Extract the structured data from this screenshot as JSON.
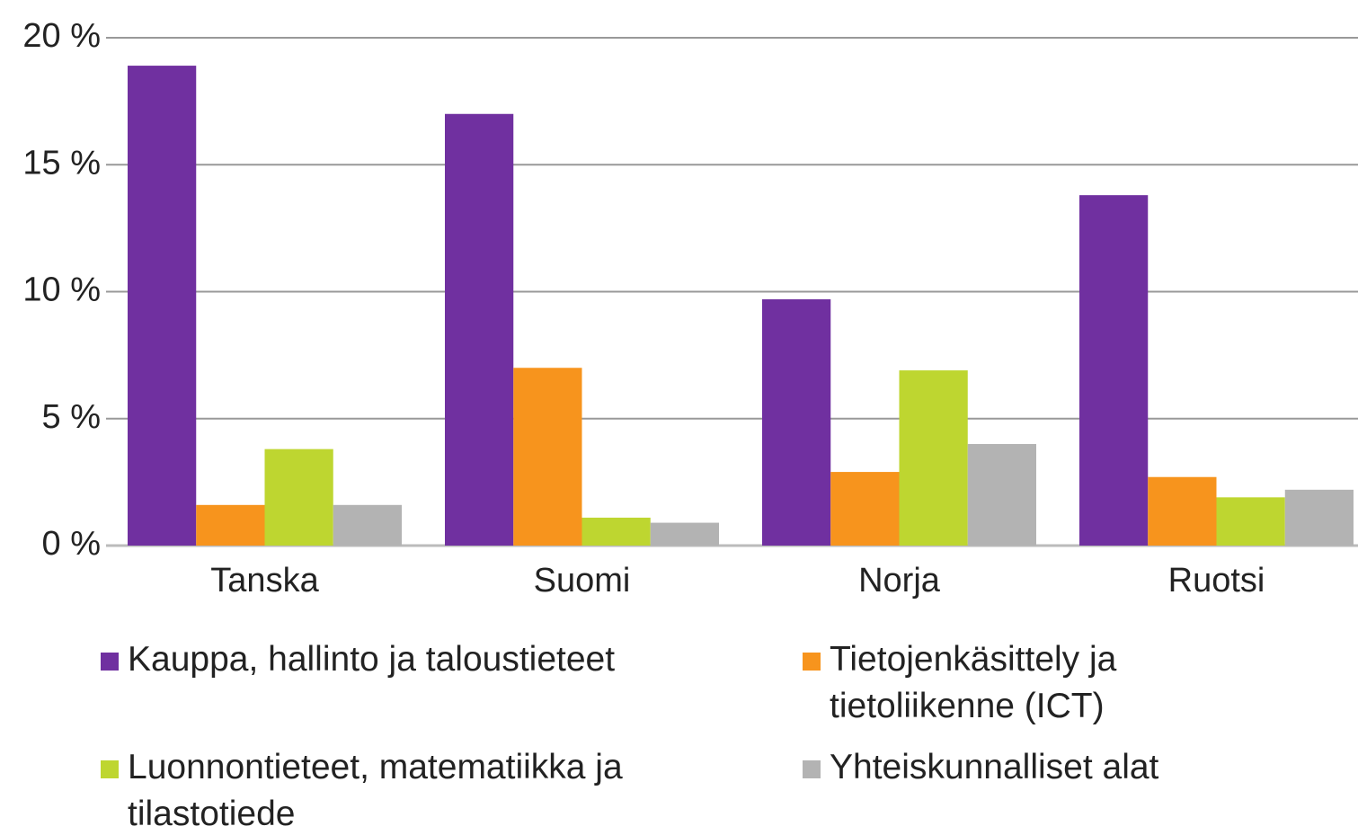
{
  "chart_data": {
    "type": "bar",
    "categories": [
      "Tanska",
      "Suomi",
      "Norja",
      "Ruotsi"
    ],
    "series": [
      {
        "name": "Kauppa, hallinto ja taloustieteet",
        "color": "#7030a0",
        "values": [
          18.9,
          17.0,
          9.7,
          13.8
        ]
      },
      {
        "name": "Tietojenkäsittely ja tietoliikenne (ICT)",
        "color": "#f7941d",
        "values": [
          1.6,
          7.0,
          2.9,
          2.7
        ]
      },
      {
        "name": "Luonnontieteet, matematiikka ja tilastotiede",
        "color": "#bed630",
        "values": [
          3.8,
          1.1,
          6.9,
          1.9
        ]
      },
      {
        "name": "Yhteiskunnalliset alat",
        "color": "#b3b3b3",
        "values": [
          1.6,
          0.9,
          4.0,
          2.2
        ]
      }
    ],
    "ylim": [
      0,
      20
    ],
    "yticks": [
      {
        "value": 0,
        "label": "0 %"
      },
      {
        "value": 5,
        "label": "5 %"
      },
      {
        "value": 10,
        "label": "10 %"
      },
      {
        "value": 15,
        "label": "15 %"
      },
      {
        "value": 20,
        "label": "20 %"
      }
    ],
    "grid": true
  }
}
